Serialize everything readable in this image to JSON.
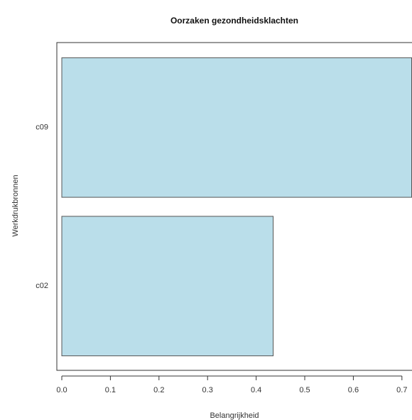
{
  "chart_data": {
    "type": "barh",
    "title": "Oorzaken gezondheidsklachten",
    "x_label": "Belangrijkheid",
    "y_label": "Werkdrukbronnen",
    "categories": [
      "c09",
      "c02"
    ],
    "values": [
      0.72,
      0.435
    ],
    "color": "#badeea",
    "xlim": [
      0,
      0.72
    ],
    "xticks": [
      {
        "value": 0,
        "label": "0.0"
      },
      0.1,
      0.2,
      0.3,
      0.4,
      0.5,
      0.6,
      0.7
    ]
  }
}
